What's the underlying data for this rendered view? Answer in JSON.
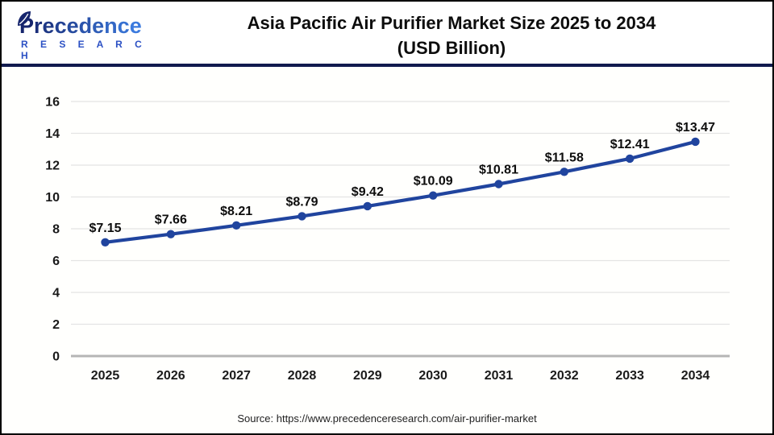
{
  "header": {
    "logo": {
      "name": "Precedence",
      "subtitle": "R E S E A R C H"
    },
    "title_line1": "Asia Pacific Air Purifier Market Size 2025 to 2034",
    "title_line2": "(USD Billion)"
  },
  "chart_data": {
    "type": "line",
    "title": "Asia Pacific Air Purifier Market Size 2025 to 2034 (USD Billion)",
    "series_name": "Asia Pacific Air Purifier Market Size (USD Billion)",
    "categories": [
      "2025",
      "2026",
      "2027",
      "2028",
      "2029",
      "2030",
      "2031",
      "2032",
      "2033",
      "2034"
    ],
    "values": [
      7.15,
      7.66,
      8.21,
      8.79,
      9.42,
      10.09,
      10.81,
      11.58,
      12.41,
      13.47
    ],
    "point_labels": [
      "$7.15",
      "$7.66",
      "$8.21",
      "$8.79",
      "$9.42",
      "$10.09",
      "$10.81",
      "$11.58",
      "$12.41",
      "$13.47"
    ],
    "xlabel": "",
    "ylabel": "",
    "ylim": [
      0,
      16
    ],
    "ytick_step": 2,
    "grid": true,
    "legend_position": "none",
    "colors": {
      "line": "#20449e",
      "point": "#20449e",
      "grid": "#e4e4e4",
      "axis_baseline": "#b5b5b5",
      "tick_label": "#1a1a1a",
      "point_label": "#0d0d0d"
    }
  },
  "footer": {
    "source": "Source: https://www.precedenceresearch.com/air-purifier-market"
  },
  "brand_colors": {
    "logo_dark": "#16256d",
    "logo_light": "#3b7ade",
    "logo_subtitle": "#2b50c4",
    "divider": "#111a4e"
  }
}
